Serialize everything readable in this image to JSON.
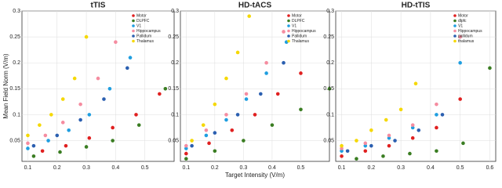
{
  "chart_data": [
    {
      "type": "scatter",
      "title": "tTIS",
      "ylabel": "Mean Field Norm (V/m)",
      "xlim": [
        0.08,
        0.6
      ],
      "ylim": [
        0.01,
        0.3
      ],
      "xticks": [
        0.1,
        0.2,
        0.3,
        0.4,
        0.5
      ],
      "yticks": [
        0.05,
        0.1,
        0.15,
        0.2,
        0.25,
        0.3
      ],
      "grid": true,
      "legend": "upper right",
      "series": [
        {
          "name": "Motor",
          "color": "#e02020",
          "x": [
            0.15,
            0.23,
            0.31,
            0.39,
            0.47,
            0.55
          ],
          "values": [
            0.03,
            0.04,
            0.055,
            0.075,
            0.1,
            0.14
          ]
        },
        {
          "name": "DLPFC",
          "color": "#3a7d22",
          "x": [
            0.12,
            0.21,
            0.3,
            0.39,
            0.48,
            0.57
          ],
          "values": [
            0.02,
            0.028,
            0.038,
            0.05,
            0.08,
            0.15
          ]
        },
        {
          "name": "V1",
          "color": "#1f9ee0",
          "x": [
            0.1,
            0.17,
            0.24,
            0.31,
            0.38,
            0.45
          ],
          "values": [
            0.035,
            0.05,
            0.07,
            0.1,
            0.15,
            0.21
          ]
        },
        {
          "name": "Hippocampus",
          "color": "#f58ca0",
          "x": [
            0.1,
            0.16,
            0.22,
            0.28,
            0.34,
            0.4
          ],
          "values": [
            0.045,
            0.06,
            0.085,
            0.12,
            0.17,
            0.24
          ]
        },
        {
          "name": "Pallidum",
          "color": "#2b5fb0",
          "x": [
            0.12,
            0.2,
            0.28,
            0.36,
            0.44
          ],
          "values": [
            0.04,
            0.06,
            0.09,
            0.13,
            0.19
          ]
        },
        {
          "name": "Thalamus",
          "color": "#f5d800",
          "x": [
            0.1,
            0.14,
            0.18,
            0.22,
            0.26,
            0.3
          ],
          "values": [
            0.06,
            0.08,
            0.1,
            0.13,
            0.17,
            0.25
          ]
        }
      ]
    },
    {
      "type": "scatter",
      "title": "HD-tACS",
      "xlabel": "Target Intensity (V/m)",
      "xlim": [
        0.08,
        0.6
      ],
      "ylim": [
        0.01,
        0.3
      ],
      "xticks": [
        0.1,
        0.2,
        0.3,
        0.4,
        0.5
      ],
      "yticks": [
        0.05,
        0.1,
        0.15,
        0.2,
        0.25,
        0.3
      ],
      "grid": true,
      "legend": "upper right",
      "series": [
        {
          "name": "Motor",
          "color": "#e02020",
          "x": [
            0.1,
            0.18,
            0.26,
            0.34,
            0.42,
            0.5
          ],
          "values": [
            0.025,
            0.045,
            0.07,
            0.1,
            0.14,
            0.18
          ]
        },
        {
          "name": "DLPFC",
          "color": "#3a7d22",
          "x": [
            0.1,
            0.2,
            0.3,
            0.4,
            0.5,
            0.6
          ],
          "values": [
            0.015,
            0.03,
            0.05,
            0.08,
            0.11,
            0.15
          ]
        },
        {
          "name": "V1",
          "color": "#1f9ee0",
          "x": [
            0.1,
            0.17,
            0.24,
            0.31,
            0.38,
            0.45
          ],
          "values": [
            0.035,
            0.06,
            0.09,
            0.13,
            0.18,
            0.24
          ]
        },
        {
          "name": "Hippocampus",
          "color": "#f58ca0",
          "x": [
            0.1,
            0.17,
            0.24,
            0.31,
            0.38,
            0.44
          ],
          "values": [
            0.04,
            0.07,
            0.1,
            0.14,
            0.2,
            0.26
          ]
        },
        {
          "name": "Pallidum",
          "color": "#2b5fb0",
          "x": [
            0.12,
            0.2,
            0.28,
            0.36,
            0.44
          ],
          "values": [
            0.04,
            0.065,
            0.1,
            0.14,
            0.2
          ]
        },
        {
          "name": "Thalamus",
          "color": "#f5d800",
          "x": [
            0.12,
            0.16,
            0.2,
            0.24,
            0.28,
            0.32
          ],
          "values": [
            0.05,
            0.08,
            0.12,
            0.17,
            0.22,
            0.29
          ]
        }
      ]
    },
    {
      "type": "scatter",
      "title": "HD-tTIS",
      "xlim": [
        0.08,
        0.62
      ],
      "ylim": [
        0.01,
        0.3
      ],
      "xticks": [
        0.1,
        0.2,
        0.3,
        0.4,
        0.5,
        0.6
      ],
      "yticks": [
        0.05,
        0.1,
        0.15,
        0.2,
        0.25,
        0.3
      ],
      "grid": true,
      "legend": "upper right",
      "series": [
        {
          "name": "Motor",
          "color": "#e02020",
          "x": [
            0.1,
            0.18,
            0.26,
            0.34,
            0.42,
            0.5
          ],
          "values": [
            0.02,
            0.03,
            0.04,
            0.055,
            0.075,
            0.13
          ]
        },
        {
          "name": "dlpfc",
          "color": "#3a7d22",
          "x": [
            0.15,
            0.24,
            0.33,
            0.42,
            0.51,
            0.6
          ],
          "values": [
            0.015,
            0.02,
            0.025,
            0.03,
            0.045,
            0.19
          ]
        },
        {
          "name": "V1",
          "color": "#1f9ee0",
          "x": [
            0.1,
            0.18,
            0.26,
            0.34,
            0.42,
            0.5
          ],
          "values": [
            0.03,
            0.04,
            0.055,
            0.075,
            0.1,
            0.2
          ]
        },
        {
          "name": "Hippocampus",
          "color": "#f58ca0",
          "x": [
            0.1,
            0.18,
            0.26,
            0.34,
            0.42,
            0.5
          ],
          "values": [
            0.035,
            0.045,
            0.06,
            0.08,
            0.12,
            0.25
          ]
        },
        {
          "name": "pallidum",
          "color": "#2b5fb0",
          "x": [
            0.12,
            0.2,
            0.28,
            0.36,
            0.44
          ],
          "values": [
            0.03,
            0.04,
            0.05,
            0.07,
            0.1
          ]
        },
        {
          "name": "thalamus",
          "color": "#f5d800",
          "x": [
            0.1,
            0.15,
            0.2,
            0.25,
            0.3,
            0.35
          ],
          "values": [
            0.04,
            0.05,
            0.07,
            0.09,
            0.11,
            0.16
          ]
        }
      ]
    }
  ]
}
